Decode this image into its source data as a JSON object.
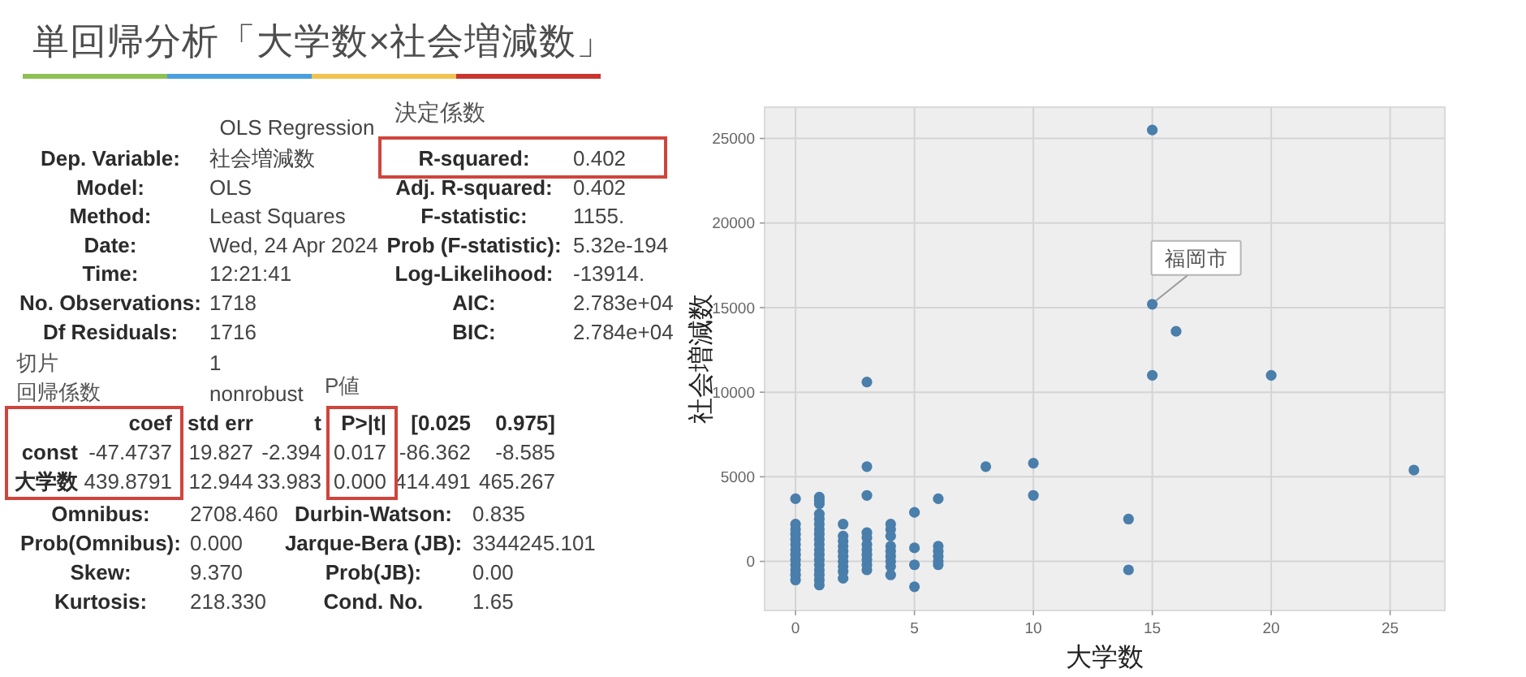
{
  "chart_data": [
    {
      "type": "other",
      "title": "単回帰分析「大学数×社会増減数」",
      "annotations": [
        "決定係数",
        "OLS Regression",
        "Dep. Variable:",
        "社会増減数",
        "R-squared:",
        "0.402",
        "Model:",
        "OLS",
        "Adj. R-squared:",
        "0.402",
        "Method:",
        "Least Squares",
        "F-statistic:",
        "1155.",
        "Date:",
        "Wed, 24 Apr 2024",
        "Prob (F-statistic):",
        "5.32e-194",
        "Time:",
        "12:21:41",
        "Log-Likelihood:",
        "-13914.",
        "No. Observations:",
        "1718",
        "AIC:",
        "2.783e+04",
        "Df Residuals:",
        "1716",
        "BIC:",
        "2.784e+04",
        "切片",
        "1",
        "回帰係数",
        "nonrobust",
        "P値",
        "coef",
        "std err",
        "t",
        "P>|t|",
        "[0.025",
        "0.975]",
        "const",
        "-47.4737",
        "19.827",
        "-2.394",
        "0.017",
        "-86.362",
        "-8.585",
        "大学数",
        "439.8791",
        "12.944",
        "33.983",
        "0.000",
        "414.491",
        "465.267",
        "Omnibus:",
        "2708.460",
        "Durbin-Watson:",
        "0.835",
        "Prob(Omnibus):",
        "0.000",
        "Jarque-Bera (JB):",
        "3344245.101",
        "Skew:",
        "9.370",
        "Prob(JB):",
        "0.00",
        "Kurtosis:",
        "218.330",
        "Cond. No.",
        "1.65"
      ]
    },
    {
      "type": "scatter",
      "xlabel": "大学数",
      "ylabel": "社会増減数",
      "color": "#4a7eab",
      "marker": "circle",
      "grid": true,
      "xlim": [
        -1.3,
        27.3
      ],
      "ylim": [
        -2900,
        26850
      ],
      "xticks": [
        0,
        5,
        10,
        15,
        20,
        25
      ],
      "yticks": [
        0,
        5000,
        10000,
        15000,
        20000,
        25000
      ],
      "x": [
        0,
        0,
        0,
        0,
        0,
        0,
        0,
        0,
        0,
        0,
        0,
        0,
        0,
        1,
        1,
        1,
        1,
        1,
        1,
        1,
        1,
        1,
        1,
        1,
        1,
        1,
        1,
        1,
        1,
        1,
        1,
        2,
        2,
        2,
        2,
        2,
        2,
        2,
        2,
        2,
        2,
        3,
        3,
        3,
        3,
        3,
        3,
        3,
        3,
        3,
        3,
        3,
        4,
        4,
        4,
        4,
        4,
        4,
        4,
        4,
        4,
        5,
        5,
        5,
        5,
        6,
        6,
        6,
        6,
        6,
        6,
        8,
        10,
        10,
        14,
        14,
        15,
        15,
        15,
        16,
        20,
        26
      ],
      "values": [
        3700,
        2200,
        1900,
        1600,
        1300,
        1000,
        700,
        400,
        100,
        -200,
        -500,
        -800,
        -1100,
        3800,
        3600,
        3400,
        2800,
        2500,
        2200,
        1900,
        1600,
        1300,
        1000,
        700,
        400,
        100,
        -200,
        -500,
        -800,
        -1100,
        -1400,
        2200,
        1500,
        1200,
        900,
        600,
        300,
        0,
        -300,
        -600,
        -1000,
        10600,
        5600,
        3900,
        1700,
        1400,
        1000,
        700,
        400,
        100,
        -200,
        -500,
        2200,
        1900,
        1500,
        900,
        600,
        300,
        0,
        -300,
        -800,
        2900,
        800,
        -200,
        -1500,
        3700,
        900,
        600,
        300,
        0,
        -200,
        5600,
        5800,
        3900,
        2500,
        -500,
        25500,
        15200,
        11000,
        13600,
        11000,
        5400
      ],
      "annotations": [
        {
          "text": "福岡市",
          "x": 15,
          "y": 15200
        }
      ]
    }
  ]
}
